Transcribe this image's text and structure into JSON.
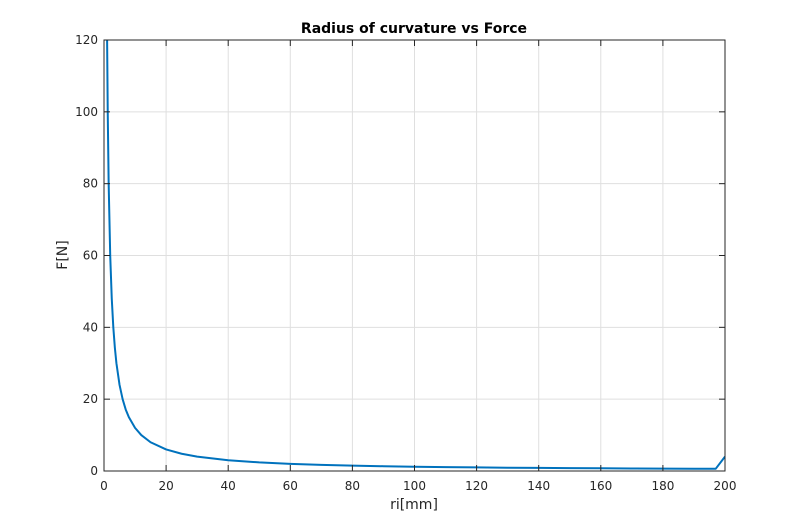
{
  "chart_data": {
    "type": "line",
    "title": "Radius of curvature vs Force",
    "xlabel": "ri[mm]",
    "ylabel": "F[N]",
    "xlim": [
      0,
      200
    ],
    "ylim": [
      0,
      120
    ],
    "xticks": [
      0,
      20,
      40,
      60,
      80,
      100,
      120,
      140,
      160,
      180,
      200
    ],
    "yticks": [
      0,
      20,
      40,
      60,
      80,
      100,
      120
    ],
    "xtick_labels": [
      "0",
      "20",
      "40",
      "60",
      "80",
      "100",
      "120",
      "140",
      "160",
      "180",
      "200"
    ],
    "ytick_labels": [
      "0",
      "20",
      "40",
      "60",
      "80",
      "100",
      "120"
    ],
    "grid": true,
    "line_color": "#0072BD",
    "series": [
      {
        "x": [
          1,
          1.2,
          1.5,
          2,
          2.5,
          3,
          3.5,
          4,
          5,
          6,
          7,
          8,
          10,
          12,
          15,
          20,
          25,
          30,
          40,
          50,
          60,
          70,
          80,
          90,
          100,
          110,
          120,
          130,
          140,
          150,
          160,
          170,
          180,
          190,
          197,
          200
        ],
        "y": [
          120,
          100,
          80,
          60,
          48,
          40,
          34.3,
          30,
          24,
          20,
          17.1,
          15,
          12,
          10,
          8,
          6,
          4.8,
          4,
          3,
          2.4,
          2,
          1.71,
          1.5,
          1.33,
          1.2,
          1.09,
          1.0,
          0.92,
          0.86,
          0.8,
          0.75,
          0.71,
          0.67,
          0.63,
          0.61,
          4
        ]
      }
    ]
  }
}
